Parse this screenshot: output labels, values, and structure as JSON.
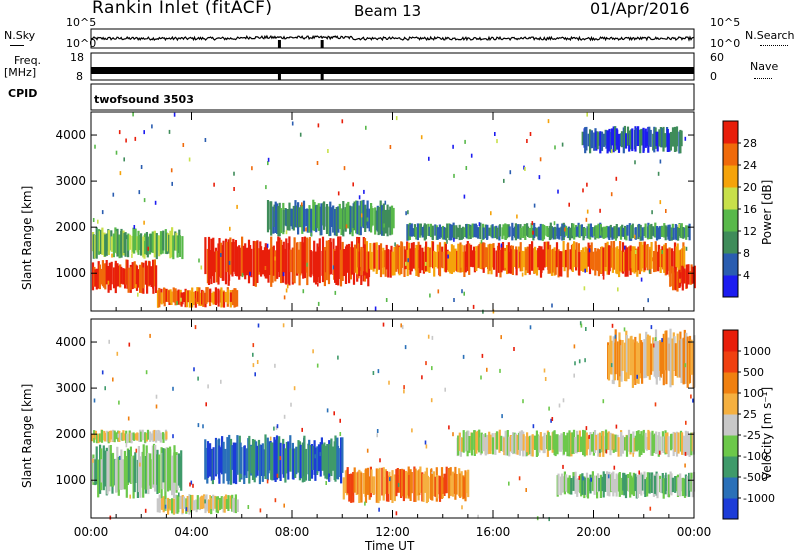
{
  "header": {
    "site": "Rankin Inlet (fitACF)",
    "beam": "Beam 13",
    "date": "01/Apr/2016"
  },
  "top_panels": {
    "nsky_label": "N.Sky",
    "nsearch_label": "N.Search",
    "freq_label_1": "Freq.",
    "freq_label_2": "[MHz]",
    "nave_label": "Nave",
    "cpid_label": "CPID",
    "cpid_value": "twofsound 3503",
    "left_ticks": [
      "10^5",
      "10^0",
      "18",
      "8"
    ],
    "right_ticks": [
      "10^5",
      "10^0",
      "60",
      "0"
    ]
  },
  "colors": {
    "axis": "#000000",
    "gap_marker": "#000000"
  },
  "chart_data": [
    {
      "type": "heatmap",
      "title": "Power",
      "ylabel": "Slant Range [km]",
      "xlabel": "",
      "x_ticks": [
        "00:00",
        "04:00",
        "08:00",
        "12:00",
        "16:00",
        "20:00",
        "00:00"
      ],
      "y_ticks": [
        1000,
        2000,
        3000,
        4000
      ],
      "ylim": [
        180,
        4500
      ],
      "colorbar_label": "Power [dB]",
      "colorbar_ticks": [
        4,
        8,
        12,
        16,
        20,
        24,
        28
      ],
      "colorbar_colors": [
        "#1c1cf0",
        "#2a5db0",
        "#3f8c5a",
        "#58b84a",
        "#c8e04a",
        "#f5a30a",
        "#f06a0a",
        "#e81e0a"
      ],
      "bands": [
        {
          "t0": 0.0,
          "t1": 2.6,
          "r0": 550,
          "r1": 1300,
          "level": 7
        },
        {
          "t0": 0.0,
          "t1": 3.6,
          "r0": 1300,
          "r1": 2000,
          "level": 3
        },
        {
          "t0": 2.6,
          "t1": 5.8,
          "r0": 250,
          "r1": 700,
          "level": 6
        },
        {
          "t0": 4.5,
          "t1": 11.0,
          "r0": 700,
          "r1": 1800,
          "level": 7
        },
        {
          "t0": 7.0,
          "t1": 12.0,
          "r0": 1800,
          "r1": 2600,
          "level": 2
        },
        {
          "t0": 10.5,
          "t1": 23.6,
          "r0": 900,
          "r1": 1700,
          "level": 6
        },
        {
          "t0": 12.5,
          "t1": 23.8,
          "r0": 1700,
          "r1": 2100,
          "level": 2
        },
        {
          "t0": 23.0,
          "t1": 24.0,
          "r0": 600,
          "r1": 1200,
          "level": 7
        },
        {
          "t0": 19.5,
          "t1": 23.5,
          "r0": 3600,
          "r1": 4200,
          "level": 1
        }
      ]
    },
    {
      "type": "heatmap",
      "title": "Velocity",
      "ylabel": "Slant Range [km]",
      "xlabel": "Time UT",
      "x_ticks": [
        "00:00",
        "04:00",
        "08:00",
        "12:00",
        "16:00",
        "20:00",
        "00:00"
      ],
      "y_ticks": [
        1000,
        2000,
        3000,
        4000
      ],
      "ylim": [
        180,
        4500
      ],
      "colorbar_label": "Velocity [m s⁻¹]",
      "colorbar_ticks": [
        "1000",
        "500",
        "100",
        "25",
        "-25",
        "-100",
        "-500",
        "-1000"
      ],
      "colorbar_colors": [
        "#1c3cd8",
        "#2a70b8",
        "#3f9a6a",
        "#6cc84a",
        "#c8c8c8",
        "#f5b040",
        "#f08010",
        "#f04010",
        "#e81e0a"
      ],
      "bands": [
        {
          "t0": 0.0,
          "t1": 3.6,
          "r0": 600,
          "r1": 1800,
          "level": 3
        },
        {
          "t0": 0.0,
          "t1": 3.0,
          "r0": 1800,
          "r1": 2100,
          "level": 4
        },
        {
          "t0": 2.6,
          "t1": 5.8,
          "r0": 250,
          "r1": 700,
          "level": 4
        },
        {
          "t0": 4.5,
          "t1": 10.0,
          "r0": 900,
          "r1": 2000,
          "level": 1
        },
        {
          "t0": 10.0,
          "t1": 15.0,
          "r0": 500,
          "r1": 1300,
          "level": 6
        },
        {
          "t0": 14.5,
          "t1": 24.0,
          "r0": 1500,
          "r1": 2100,
          "level": 4
        },
        {
          "t0": 18.5,
          "t1": 24.0,
          "r0": 600,
          "r1": 1200,
          "level": 3
        },
        {
          "t0": 20.5,
          "t1": 24.0,
          "r0": 3000,
          "r1": 4300,
          "level": 5
        }
      ]
    }
  ]
}
